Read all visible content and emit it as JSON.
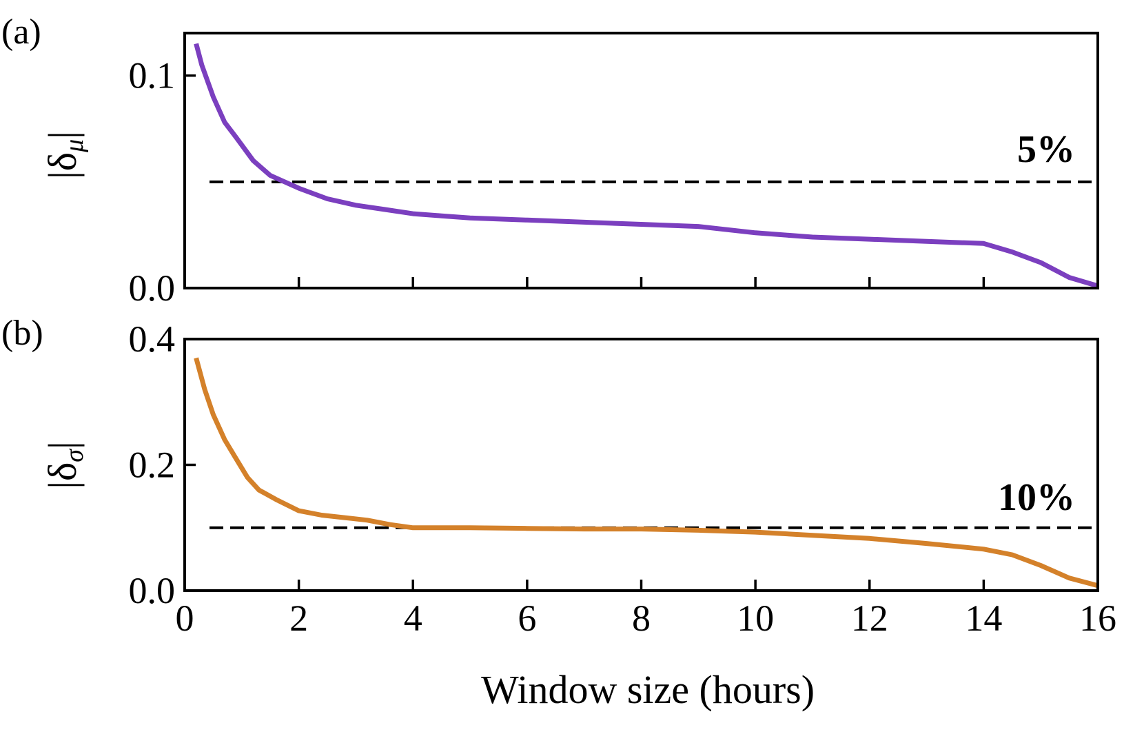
{
  "chart_data": [
    {
      "type": "line",
      "panel_label": "(a)",
      "ylabel": "|δ",
      "ylabel_subscript": "μ",
      "ylabel_close": "|",
      "xlim": [
        0,
        16
      ],
      "ylim": [
        0,
        0.12
      ],
      "yticks": [
        0.0,
        0.1
      ],
      "ytick_labels": [
        "0.0",
        "0.1"
      ],
      "xticks": [
        2,
        4,
        6,
        8,
        10,
        12,
        14
      ],
      "xtick_labels_shown": false,
      "reference_line": {
        "y": 0.05,
        "style": "dashed",
        "color": "#000000"
      },
      "annotation": "5%",
      "series": [
        {
          "color": "#7B3FBF",
          "x": [
            0.2,
            0.3,
            0.5,
            0.7,
            0.9,
            1.2,
            1.5,
            2.0,
            2.5,
            3.0,
            3.5,
            4.0,
            4.5,
            5.0,
            6.0,
            7.0,
            8.0,
            9.0,
            10.0,
            11.0,
            12.0,
            13.0,
            14.0,
            14.5,
            15.0,
            15.5,
            16.0
          ],
          "y": [
            0.115,
            0.105,
            0.09,
            0.078,
            0.071,
            0.06,
            0.053,
            0.047,
            0.042,
            0.039,
            0.037,
            0.035,
            0.034,
            0.033,
            0.032,
            0.031,
            0.03,
            0.029,
            0.026,
            0.024,
            0.023,
            0.022,
            0.021,
            0.017,
            0.012,
            0.005,
            0.001
          ]
        }
      ]
    },
    {
      "type": "line",
      "panel_label": "(b)",
      "ylabel": "|δ",
      "ylabel_subscript": "σ",
      "ylabel_close": "|",
      "xlabel": "Window size (hours)",
      "xlim": [
        0,
        16
      ],
      "ylim": [
        0,
        0.4
      ],
      "yticks": [
        0.0,
        0.2,
        0.4
      ],
      "ytick_labels": [
        "0.0",
        "0.2",
        "0.4"
      ],
      "xticks": [
        0,
        2,
        4,
        6,
        8,
        10,
        12,
        14,
        16
      ],
      "xtick_labels": [
        "0",
        "2",
        "4",
        "6",
        "8",
        "10",
        "12",
        "14",
        "16"
      ],
      "reference_line": {
        "y": 0.1,
        "style": "dashed",
        "color": "#000000"
      },
      "annotation": "10%",
      "series": [
        {
          "color": "#D4812A",
          "x": [
            0.2,
            0.35,
            0.5,
            0.7,
            0.9,
            1.1,
            1.3,
            1.6,
            2.0,
            2.4,
            2.8,
            3.2,
            3.6,
            4.0,
            5.0,
            6.0,
            7.0,
            8.0,
            9.0,
            10.0,
            11.0,
            12.0,
            13.0,
            14.0,
            14.5,
            15.0,
            15.5,
            16.0
          ],
          "y": [
            0.37,
            0.32,
            0.28,
            0.24,
            0.21,
            0.18,
            0.16,
            0.145,
            0.127,
            0.12,
            0.116,
            0.112,
            0.105,
            0.1,
            0.1,
            0.099,
            0.098,
            0.098,
            0.096,
            0.093,
            0.088,
            0.083,
            0.075,
            0.066,
            0.057,
            0.04,
            0.02,
            0.008
          ]
        }
      ]
    }
  ]
}
